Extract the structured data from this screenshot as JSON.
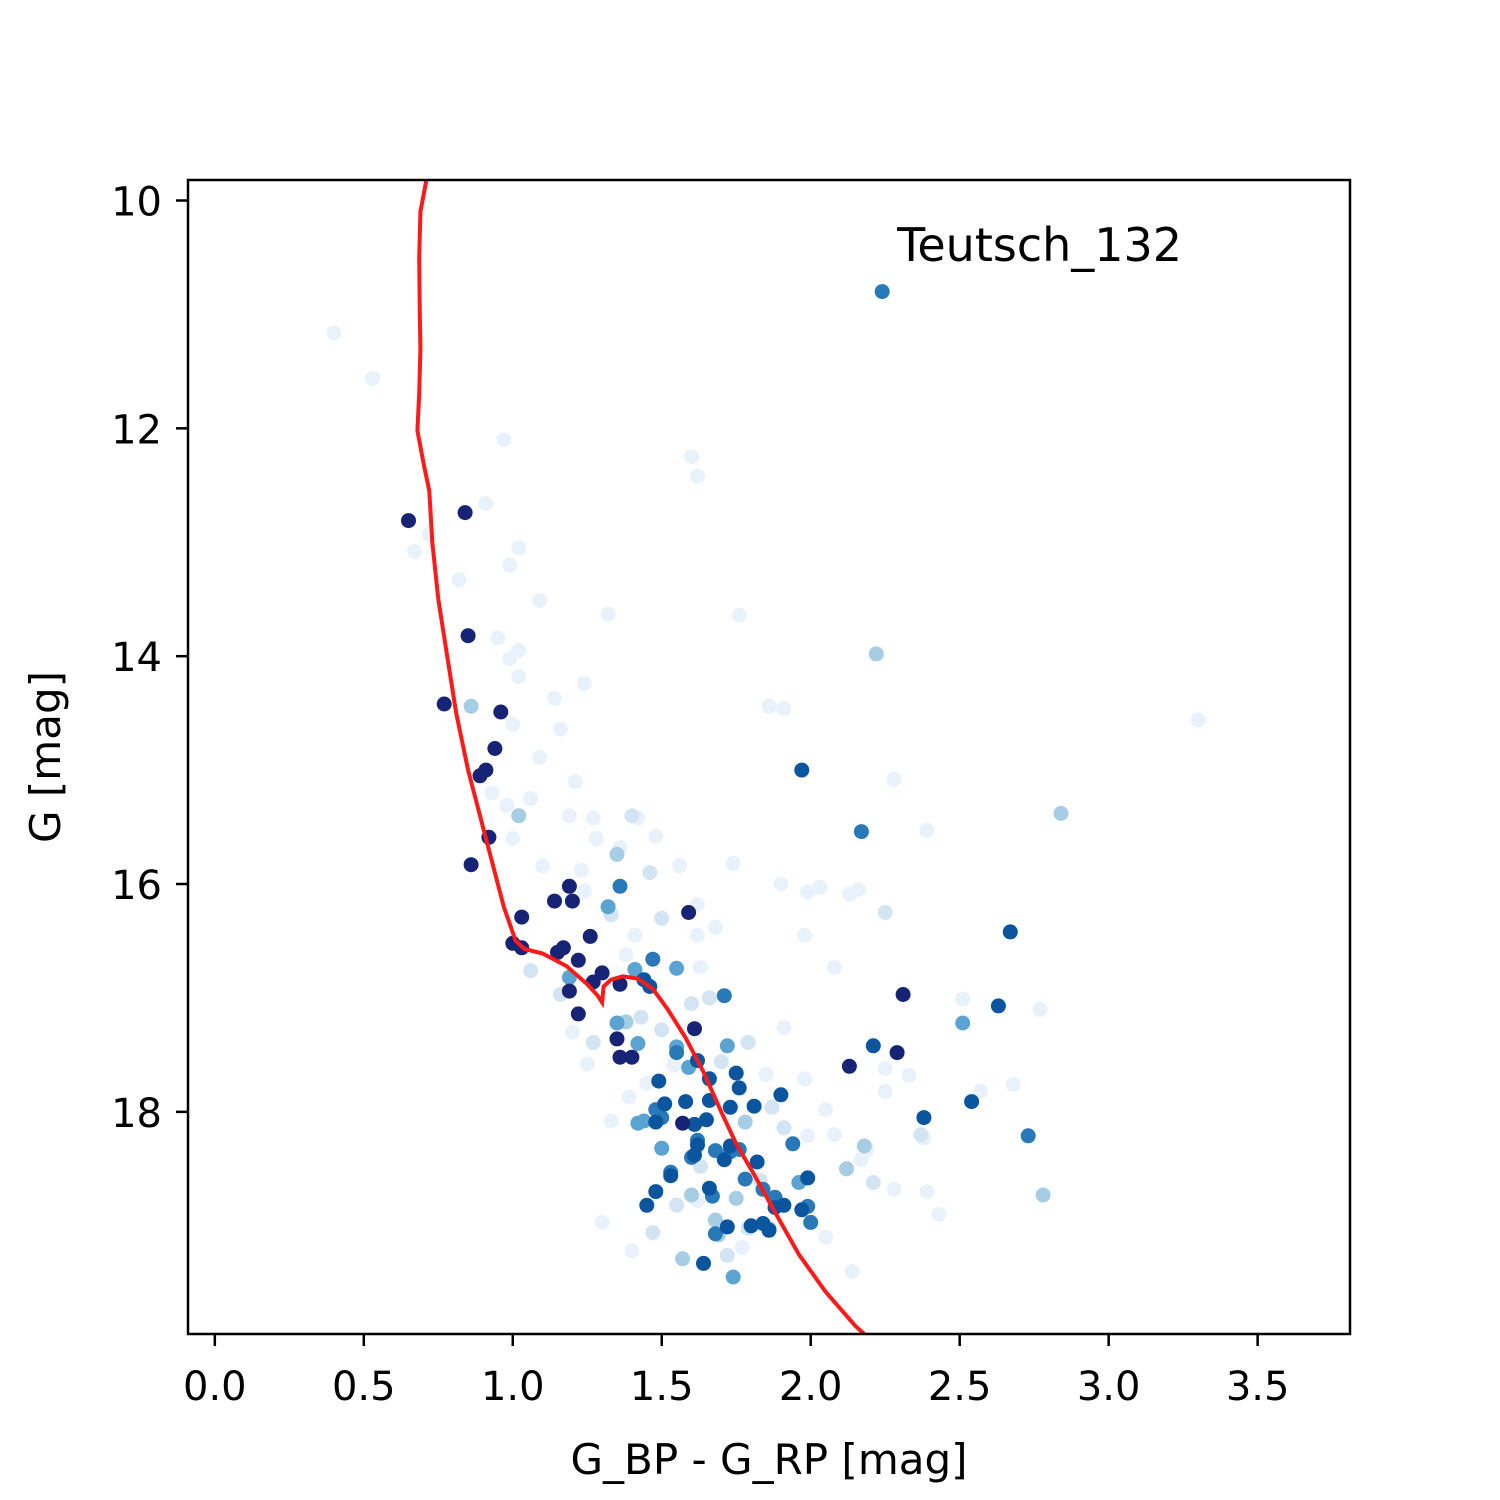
{
  "chart_data": {
    "type": "scatter",
    "title": "",
    "xlabel": "G_BP - G_RP [mag]",
    "ylabel": "G [mag]",
    "xlim": [
      -0.09,
      3.81
    ],
    "ylim": [
      19.95,
      9.82
    ],
    "y_inverted": true,
    "xticks": [
      0.0,
      0.5,
      1.0,
      1.5,
      2.0,
      2.5,
      3.0,
      3.5
    ],
    "xtick_labels": [
      "0.0",
      "0.5",
      "1.0",
      "1.5",
      "2.0",
      "2.5",
      "3.0",
      "3.5"
    ],
    "yticks": [
      10,
      12,
      14,
      16,
      18
    ],
    "ytick_labels": [
      "10",
      "12",
      "14",
      "16",
      "18"
    ],
    "grid": false,
    "legend": "none",
    "colormap": "Blues",
    "colors": {
      "isochrone": "#ff1a1a",
      "frame": "#000000"
    },
    "annotation": {
      "text": "Teutsch_132",
      "x": 2.29,
      "y": 10.53
    },
    "isochrone": {
      "name": "",
      "points": [
        [
          0.71,
          9.82
        ],
        [
          0.69,
          10.1
        ],
        [
          0.686,
          10.5
        ],
        [
          0.688,
          11.0
        ],
        [
          0.69,
          11.3
        ],
        [
          0.686,
          11.7
        ],
        [
          0.68,
          12.02
        ],
        [
          0.7,
          12.3
        ],
        [
          0.72,
          12.55
        ],
        [
          0.73,
          13.0
        ],
        [
          0.75,
          13.5
        ],
        [
          0.78,
          14.0
        ],
        [
          0.81,
          14.5
        ],
        [
          0.85,
          15.0
        ],
        [
          0.89,
          15.4
        ],
        [
          0.93,
          15.8
        ],
        [
          0.97,
          16.2
        ],
        [
          1.01,
          16.5
        ],
        [
          1.04,
          16.57
        ],
        [
          1.1,
          16.61
        ],
        [
          1.18,
          16.72
        ],
        [
          1.25,
          16.88
        ],
        [
          1.285,
          16.98
        ],
        [
          1.3,
          17.04
        ],
        [
          1.305,
          16.9
        ],
        [
          1.33,
          16.84
        ],
        [
          1.37,
          16.81
        ],
        [
          1.42,
          16.83
        ],
        [
          1.47,
          16.92
        ],
        [
          1.52,
          17.1
        ],
        [
          1.58,
          17.35
        ],
        [
          1.64,
          17.65
        ],
        [
          1.7,
          18.0
        ],
        [
          1.75,
          18.28
        ],
        [
          1.81,
          18.55
        ],
        [
          1.88,
          18.88
        ],
        [
          1.96,
          19.25
        ],
        [
          2.05,
          19.58
        ],
        [
          2.15,
          19.88
        ],
        [
          2.18,
          19.95
        ]
      ]
    },
    "series": [
      {
        "level": 0.98,
        "points": [
          [
            0.65,
            12.81
          ],
          [
            0.84,
            12.74
          ],
          [
            0.85,
            13.82
          ],
          [
            0.77,
            14.42
          ],
          [
            0.96,
            14.49
          ],
          [
            0.94,
            14.81
          ],
          [
            0.91,
            15.0
          ],
          [
            0.89,
            15.05
          ],
          [
            0.92,
            15.59
          ],
          [
            0.86,
            15.83
          ],
          [
            1.03,
            16.29
          ],
          [
            1.0,
            16.52
          ],
          [
            1.03,
            16.56
          ],
          [
            1.14,
            16.15
          ],
          [
            1.2,
            16.15
          ],
          [
            1.17,
            16.56
          ],
          [
            1.15,
            16.6
          ],
          [
            1.22,
            16.67
          ],
          [
            1.19,
            16.94
          ],
          [
            1.22,
            17.14
          ],
          [
            1.26,
            16.46
          ],
          [
            1.27,
            16.86
          ],
          [
            1.3,
            16.78
          ],
          [
            1.36,
            16.88
          ],
          [
            1.35,
            17.36
          ],
          [
            1.36,
            17.52
          ],
          [
            1.4,
            17.52
          ],
          [
            1.59,
            16.25
          ],
          [
            1.61,
            17.27
          ],
          [
            1.57,
            18.1
          ],
          [
            2.31,
            16.97
          ],
          [
            2.29,
            17.48
          ],
          [
            2.13,
            17.6
          ],
          [
            1.19,
            16.02
          ]
        ]
      },
      {
        "level": 0.86,
        "points": [
          [
            1.46,
            16.9
          ],
          [
            1.44,
            16.84
          ],
          [
            1.49,
            17.73
          ],
          [
            1.51,
            17.93
          ],
          [
            1.58,
            17.91
          ],
          [
            1.62,
            17.55
          ],
          [
            1.66,
            17.71
          ],
          [
            1.73,
            17.96
          ],
          [
            1.76,
            17.79
          ],
          [
            1.81,
            17.95
          ],
          [
            1.9,
            17.85
          ],
          [
            1.65,
            18.07
          ],
          [
            1.62,
            18.29
          ],
          [
            1.61,
            18.38
          ],
          [
            1.71,
            18.42
          ],
          [
            1.73,
            18.3
          ],
          [
            1.82,
            18.44
          ],
          [
            1.66,
            18.67
          ],
          [
            1.64,
            19.33
          ],
          [
            1.72,
            19.01
          ],
          [
            1.8,
            19.0
          ],
          [
            1.84,
            18.98
          ],
          [
            1.86,
            19.04
          ],
          [
            1.88,
            18.84
          ],
          [
            1.91,
            18.82
          ],
          [
            1.97,
            18.86
          ],
          [
            1.53,
            18.56
          ],
          [
            1.48,
            18.7
          ],
          [
            1.45,
            18.82
          ],
          [
            1.97,
            15.0
          ],
          [
            2.21,
            17.42
          ],
          [
            2.38,
            18.05
          ],
          [
            2.54,
            17.91
          ],
          [
            2.63,
            17.07
          ],
          [
            2.67,
            16.42
          ],
          [
            1.99,
            18.58
          ],
          [
            1.75,
            17.66
          ],
          [
            1.61,
            18.11
          ],
          [
            1.66,
            17.9
          ],
          [
            1.48,
            18.09
          ]
        ]
      },
      {
        "level": 0.72,
        "points": [
          [
            2.24,
            10.8
          ],
          [
            1.36,
            16.02
          ],
          [
            1.47,
            16.66
          ],
          [
            1.55,
            17.48
          ],
          [
            1.71,
            16.98
          ],
          [
            1.48,
            17.98
          ],
          [
            1.5,
            18.05
          ],
          [
            1.53,
            18.53
          ],
          [
            1.6,
            18.4
          ],
          [
            1.68,
            18.34
          ],
          [
            1.67,
            18.74
          ],
          [
            1.76,
            18.33
          ],
          [
            1.73,
            18.35
          ],
          [
            1.78,
            18.59
          ],
          [
            1.84,
            18.68
          ],
          [
            1.88,
            18.75
          ],
          [
            2.17,
            15.54
          ],
          [
            2.73,
            18.21
          ],
          [
            1.99,
            18.83
          ],
          [
            2.0,
            18.97
          ],
          [
            1.94,
            18.28
          ],
          [
            1.62,
            18.25
          ],
          [
            1.68,
            19.07
          ]
        ]
      },
      {
        "level": 0.55,
        "points": [
          [
            1.35,
            17.22
          ],
          [
            1.41,
            16.75
          ],
          [
            1.55,
            16.74
          ],
          [
            1.19,
            16.82
          ],
          [
            1.42,
            17.4
          ],
          [
            1.59,
            17.61
          ],
          [
            1.72,
            17.42
          ],
          [
            1.55,
            17.43
          ],
          [
            1.5,
            18.32
          ],
          [
            1.74,
            19.45
          ],
          [
            1.44,
            18.08
          ],
          [
            1.96,
            18.62
          ],
          [
            2.51,
            17.22
          ],
          [
            1.42,
            18.1
          ],
          [
            1.86,
            19.03
          ],
          [
            1.32,
            16.2
          ]
        ]
      },
      {
        "level": 0.35,
        "points": [
          [
            0.86,
            14.44
          ],
          [
            1.35,
            15.74
          ],
          [
            2.22,
            13.98
          ],
          [
            2.84,
            15.38
          ],
          [
            1.38,
            17.21
          ],
          [
            1.6,
            18.73
          ],
          [
            1.69,
            19.08
          ],
          [
            1.78,
            18.09
          ],
          [
            1.75,
            18.76
          ],
          [
            1.02,
            15.4
          ],
          [
            2.18,
            18.3
          ],
          [
            2.78,
            18.73
          ],
          [
            2.12,
            18.5
          ],
          [
            1.68,
            18.95
          ],
          [
            1.57,
            19.29
          ]
        ]
      },
      {
        "level": 0.18,
        "points": [
          [
            1.4,
            15.4
          ],
          [
            1.46,
            15.9
          ],
          [
            1.33,
            16.27
          ],
          [
            1.5,
            16.3
          ],
          [
            1.27,
            17.39
          ],
          [
            1.43,
            17.17
          ],
          [
            1.5,
            17.28
          ],
          [
            1.6,
            17.05
          ],
          [
            1.66,
            17.0
          ],
          [
            1.7,
            17.56
          ],
          [
            1.79,
            17.39
          ],
          [
            1.87,
            17.96
          ],
          [
            1.91,
            18.14
          ],
          [
            1.83,
            18.6
          ],
          [
            1.79,
            19.02
          ],
          [
            1.72,
            19.26
          ],
          [
            2.25,
            16.25
          ],
          [
            2.37,
            18.2
          ],
          [
            1.63,
            18.48
          ],
          [
            1.55,
            18.82
          ],
          [
            1.47,
            19.06
          ],
          [
            2.21,
            18.62
          ],
          [
            1.16,
            16.97
          ],
          [
            1.06,
            16.76
          ]
        ]
      },
      {
        "level": 0.07,
        "points": [
          [
            0.4,
            11.16
          ],
          [
            0.53,
            11.56
          ],
          [
            0.67,
            13.08
          ],
          [
            0.72,
            12.93
          ],
          [
            0.91,
            12.66
          ],
          [
            0.97,
            12.1
          ],
          [
            1.02,
            13.05
          ],
          [
            0.99,
            13.2
          ],
          [
            1.09,
            13.51
          ],
          [
            0.95,
            13.84
          ],
          [
            0.99,
            14.02
          ],
          [
            1.02,
            13.95
          ],
          [
            1.02,
            14.18
          ],
          [
            1.14,
            14.37
          ],
          [
            1.16,
            14.64
          ],
          [
            1.24,
            14.24
          ],
          [
            1.09,
            14.89
          ],
          [
            1.06,
            15.25
          ],
          [
            0.98,
            15.31
          ],
          [
            1.21,
            15.1
          ],
          [
            1.19,
            15.4
          ],
          [
            1.27,
            15.42
          ],
          [
            1.28,
            15.6
          ],
          [
            1.36,
            15.68
          ],
          [
            1.23,
            15.88
          ],
          [
            1.1,
            15.84
          ],
          [
            1.24,
            16.06
          ],
          [
            1.42,
            15.42
          ],
          [
            1.48,
            15.58
          ],
          [
            1.56,
            15.84
          ],
          [
            1.62,
            16.45
          ],
          [
            1.63,
            16.73
          ],
          [
            1.41,
            16.45
          ],
          [
            1.38,
            16.62
          ],
          [
            1.62,
            16.18
          ],
          [
            1.68,
            16.38
          ],
          [
            1.74,
            15.82
          ],
          [
            1.6,
            12.25
          ],
          [
            1.62,
            12.42
          ],
          [
            1.32,
            13.63
          ],
          [
            1.76,
            13.64
          ],
          [
            1.86,
            14.44
          ],
          [
            1.91,
            14.46
          ],
          [
            1.9,
            16.0
          ],
          [
            1.99,
            16.07
          ],
          [
            2.03,
            16.03
          ],
          [
            2.13,
            16.09
          ],
          [
            2.16,
            16.05
          ],
          [
            1.98,
            16.45
          ],
          [
            2.08,
            16.73
          ],
          [
            2.25,
            17.62
          ],
          [
            2.28,
            15.08
          ],
          [
            2.39,
            15.53
          ],
          [
            2.33,
            17.68
          ],
          [
            2.25,
            17.82
          ],
          [
            2.38,
            18.23
          ],
          [
            2.51,
            17.01
          ],
          [
            2.57,
            17.82
          ],
          [
            2.68,
            17.76
          ],
          [
            2.77,
            17.1
          ],
          [
            2.05,
            17.98
          ],
          [
            2.08,
            18.2
          ],
          [
            1.99,
            18.21
          ],
          [
            1.98,
            17.71
          ],
          [
            2.19,
            18.33
          ],
          [
            2.17,
            18.42
          ],
          [
            2.28,
            18.68
          ],
          [
            2.39,
            18.7
          ],
          [
            2.43,
            18.9
          ],
          [
            2.05,
            19.1
          ],
          [
            2.14,
            19.4
          ],
          [
            1.77,
            19.19
          ],
          [
            1.62,
            18.78
          ],
          [
            1.4,
            19.22
          ],
          [
            1.3,
            18.97
          ],
          [
            1.54,
            17.59
          ],
          [
            1.45,
            17.75
          ],
          [
            1.39,
            17.87
          ],
          [
            1.33,
            18.08
          ],
          [
            1.91,
            17.26
          ],
          [
            1.85,
            17.67
          ],
          [
            3.3,
            14.56
          ],
          [
            1.2,
            17.3
          ],
          [
            1.25,
            17.58
          ],
          [
            0.93,
            15.2
          ],
          [
            1.0,
            14.6
          ],
          [
            0.82,
            13.33
          ],
          [
            1.0,
            15.6
          ]
        ]
      }
    ]
  }
}
